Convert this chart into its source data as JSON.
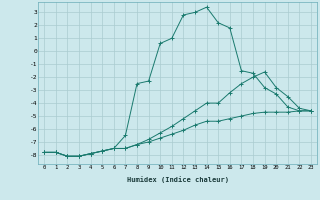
{
  "xlabel": "Humidex (Indice chaleur)",
  "ylabel": "",
  "bg_color": "#cce8ec",
  "grid_color": "#aaccd0",
  "line_color": "#1a7a6e",
  "xlim": [
    -0.5,
    23.5
  ],
  "ylim": [
    -8.7,
    3.8
  ],
  "yticks": [
    3,
    2,
    1,
    0,
    -1,
    -2,
    -3,
    -4,
    -5,
    -6,
    -7,
    -8
  ],
  "xticks": [
    0,
    1,
    2,
    3,
    4,
    5,
    6,
    7,
    8,
    9,
    10,
    11,
    12,
    13,
    14,
    15,
    16,
    17,
    18,
    19,
    20,
    21,
    22,
    23
  ],
  "series": [
    {
      "x": [
        0,
        1,
        2,
        3,
        4,
        5,
        6,
        7,
        8,
        9,
        10,
        11,
        12,
        13,
        14,
        15,
        16,
        17,
        18,
        19,
        20,
        21,
        22,
        23
      ],
      "y": [
        -7.8,
        -7.8,
        -8.1,
        -8.1,
        -7.9,
        -7.7,
        -7.5,
        -6.5,
        -2.5,
        -2.3,
        0.6,
        1.0,
        2.8,
        3.0,
        3.4,
        2.2,
        1.8,
        -1.5,
        -1.7,
        -2.8,
        -3.3,
        -4.3,
        -4.6,
        -4.6
      ]
    },
    {
      "x": [
        0,
        1,
        2,
        3,
        4,
        5,
        6,
        7,
        8,
        9,
        10,
        11,
        12,
        13,
        14,
        15,
        16,
        17,
        18,
        19,
        20,
        21,
        22,
        23
      ],
      "y": [
        -7.8,
        -7.8,
        -8.1,
        -8.1,
        -7.9,
        -7.7,
        -7.5,
        -7.5,
        -7.2,
        -6.8,
        -6.3,
        -5.8,
        -5.2,
        -4.6,
        -4.0,
        -4.0,
        -3.2,
        -2.5,
        -2.0,
        -1.6,
        -2.8,
        -3.5,
        -4.4,
        -4.6
      ]
    },
    {
      "x": [
        0,
        1,
        2,
        3,
        4,
        5,
        6,
        7,
        8,
        9,
        10,
        11,
        12,
        13,
        14,
        15,
        16,
        17,
        18,
        19,
        20,
        21,
        22,
        23
      ],
      "y": [
        -7.8,
        -7.8,
        -8.1,
        -8.1,
        -7.9,
        -7.7,
        -7.5,
        -7.5,
        -7.2,
        -7.0,
        -6.7,
        -6.4,
        -6.1,
        -5.7,
        -5.4,
        -5.4,
        -5.2,
        -5.0,
        -4.8,
        -4.7,
        -4.7,
        -4.7,
        -4.6,
        -4.6
      ]
    }
  ]
}
